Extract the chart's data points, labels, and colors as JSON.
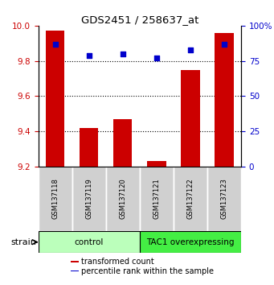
{
  "title": "GDS2451 / 258637_at",
  "samples": [
    "GSM137118",
    "GSM137119",
    "GSM137120",
    "GSM137121",
    "GSM137122",
    "GSM137123"
  ],
  "transformed_counts": [
    9.97,
    9.42,
    9.47,
    9.23,
    9.75,
    9.96
  ],
  "percentile_ranks": [
    87,
    79,
    80,
    77,
    83,
    87
  ],
  "ylim_left": [
    9.2,
    10.0
  ],
  "ylim_right": [
    0,
    100
  ],
  "yticks_left": [
    9.2,
    9.4,
    9.6,
    9.8,
    10.0
  ],
  "yticks_right": [
    0,
    25,
    50,
    75,
    100
  ],
  "ytick_labels_right": [
    "0",
    "25",
    "50",
    "75",
    "100%"
  ],
  "groups": [
    {
      "label": "control",
      "indices": [
        0,
        1,
        2
      ],
      "color": "#bbffbb"
    },
    {
      "label": "TAC1 overexpressing",
      "indices": [
        3,
        4,
        5
      ],
      "color": "#44ee44"
    }
  ],
  "bar_color": "#cc0000",
  "scatter_color": "#0000cc",
  "bar_width": 0.55,
  "tick_color_left": "#cc0000",
  "tick_color_right": "#0000cc",
  "legend_items": [
    {
      "color": "#cc0000",
      "label": "transformed count"
    },
    {
      "color": "#0000cc",
      "label": "percentile rank within the sample"
    }
  ],
  "strain_label": "strain",
  "figsize": [
    3.41,
    3.54
  ],
  "dpi": 100
}
